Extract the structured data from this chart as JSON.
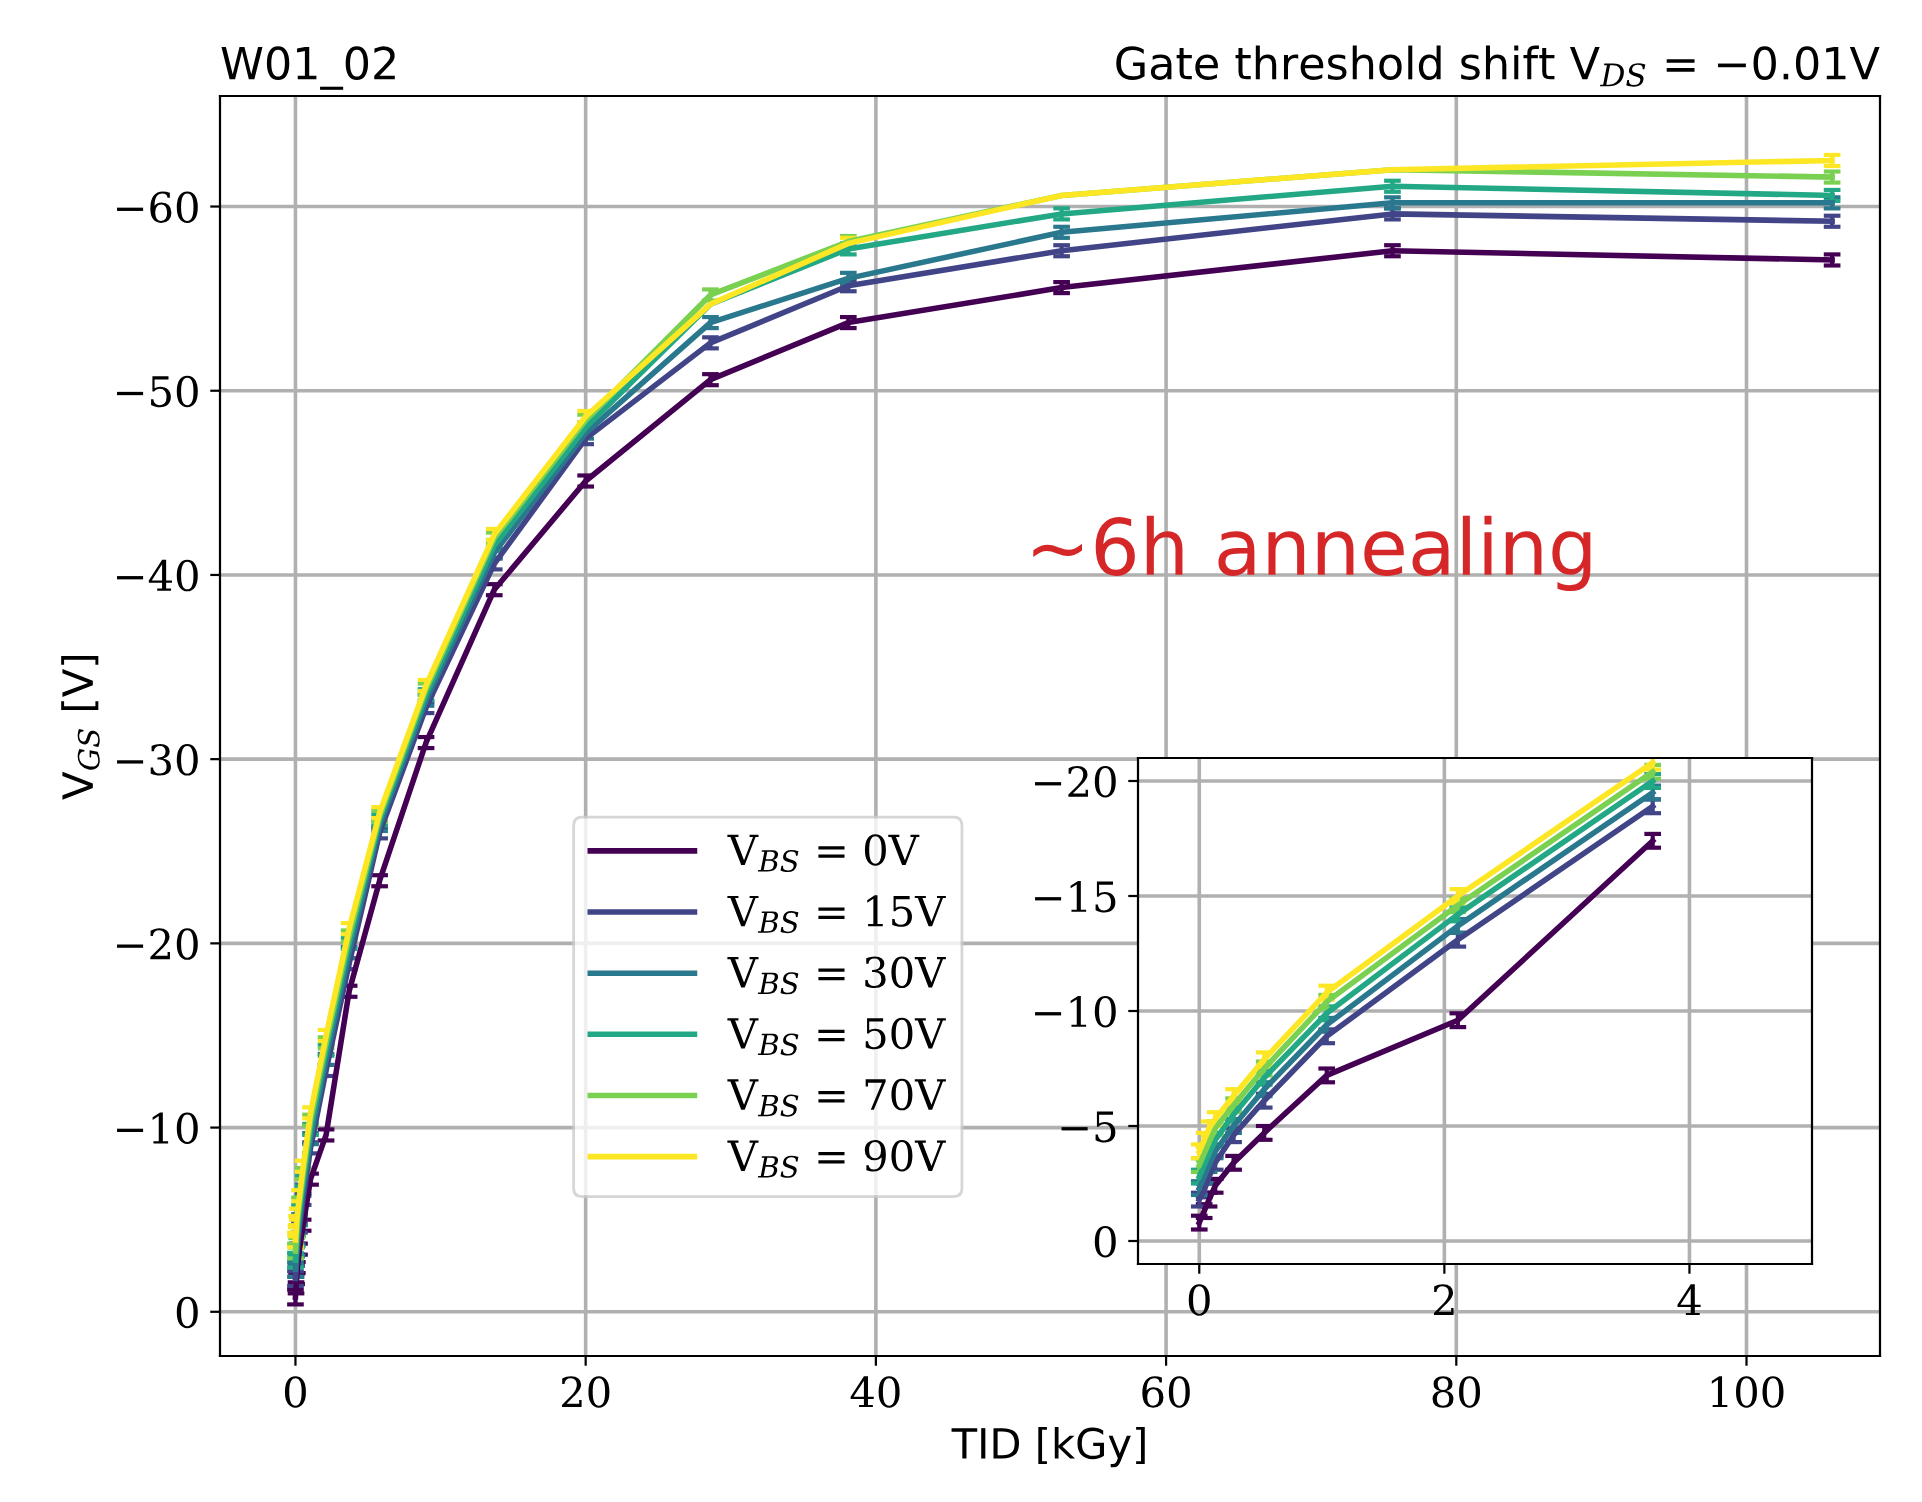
{
  "chart_data": [
    {
      "type": "line",
      "title": "W01_02",
      "subtitle": "Gate threshold shift V$_{DS}$ = −0.01V",
      "xlabel": "TID [kGy]",
      "ylabel": "V$_{GS}$ [V]",
      "annotations": [
        "~6h annealing"
      ],
      "x": [
        0,
        0.04,
        0.08,
        0.13,
        0.28,
        0.53,
        1.04,
        2.11,
        3.7,
        5.8,
        9.0,
        13.7,
        20.0,
        28.6,
        38.1,
        52.8,
        75.6,
        105.9
      ],
      "xlim": [
        -5.2,
        109.2
      ],
      "ylim": [
        2.4,
        -66
      ],
      "xticks": [
        0,
        20,
        40,
        60,
        80,
        100
      ],
      "yticks": [
        0,
        -10,
        -20,
        -30,
        -40,
        -50,
        -60
      ],
      "grid": true,
      "legend": "bottom",
      "line_style": "solid",
      "series": [
        {
          "name": "V$_{BS}$ = 0V",
          "color": "#440154",
          "values": [
            -0.8,
            -1.3,
            -1.8,
            -2.4,
            -3.4,
            -4.7,
            -7.2,
            -9.6,
            -17.4,
            -23.4,
            -30.9,
            -39.2,
            -45.1,
            -50.6,
            -53.7,
            -55.6,
            -57.6,
            -57.1
          ],
          "errors": [
            0.4,
            0.3,
            0.3,
            0.3,
            0.3,
            0.3,
            0.3,
            0.3,
            0.3,
            0.3,
            0.3,
            0.3,
            0.3,
            0.3,
            0.3,
            0.3,
            0.3,
            0.3
          ]
        },
        {
          "name": "V$_{BS}$ = 15V",
          "color": "#414487",
          "values": [
            -1.8,
            -2.2,
            -2.8,
            -3.4,
            -4.6,
            -6.1,
            -8.9,
            -13.1,
            -18.9,
            -26.0,
            -32.8,
            -40.6,
            -47.4,
            -52.6,
            -55.7,
            -57.6,
            -59.6,
            -59.2
          ],
          "errors": [
            0.4,
            0.3,
            0.3,
            0.3,
            0.3,
            0.3,
            0.3,
            0.3,
            0.3,
            0.3,
            0.3,
            0.3,
            0.3,
            0.3,
            0.3,
            0.3,
            0.3,
            0.3
          ]
        },
        {
          "name": "V$_{BS}$ = 30V",
          "color": "#2a788e",
          "values": [
            -2.3,
            -2.8,
            -3.3,
            -3.9,
            -5.0,
            -6.6,
            -9.4,
            -13.7,
            -19.5,
            -26.4,
            -33.2,
            -41.2,
            -47.7,
            -53.7,
            -56.1,
            -58.6,
            -60.2,
            -60.2
          ],
          "errors": [
            0.4,
            0.3,
            0.3,
            0.3,
            0.3,
            0.3,
            0.3,
            0.3,
            0.3,
            0.3,
            0.3,
            0.3,
            0.3,
            0.3,
            0.3,
            0.3,
            0.3,
            0.3
          ]
        },
        {
          "name": "V$_{BS}$ = 50V",
          "color": "#22a884",
          "values": [
            -2.8,
            -3.3,
            -3.8,
            -4.4,
            -5.5,
            -7.1,
            -9.9,
            -14.2,
            -20.0,
            -26.7,
            -33.5,
            -41.6,
            -48.0,
            -54.7,
            -57.7,
            -59.6,
            -61.1,
            -60.6
          ],
          "errors": [
            0.4,
            0.3,
            0.3,
            0.3,
            0.3,
            0.3,
            0.3,
            0.3,
            0.3,
            0.3,
            0.3,
            0.3,
            0.3,
            null,
            0.3,
            0.3,
            0.3,
            0.3
          ]
        },
        {
          "name": "V$_{BS}$ = 70V",
          "color": "#7ad151",
          "values": [
            -3.3,
            -3.8,
            -4.3,
            -4.9,
            -5.9,
            -7.5,
            -10.4,
            -14.6,
            -20.4,
            -26.9,
            -33.8,
            -42.0,
            -48.4,
            -55.2,
            -58.1,
            -60.6,
            -62.0,
            -61.6
          ],
          "errors": [
            0.4,
            0.3,
            0.3,
            0.3,
            0.3,
            0.3,
            0.3,
            0.3,
            0.3,
            0.3,
            0.3,
            0.3,
            0.3,
            0.3,
            0.3,
            null,
            null,
            0.3
          ]
        },
        {
          "name": "V$_{BS}$ = 90V",
          "color": "#fde725",
          "values": [
            -3.9,
            -4.4,
            -4.9,
            -5.3,
            -6.3,
            -7.9,
            -10.8,
            -15.0,
            -20.8,
            -27.1,
            -34.0,
            -42.2,
            -48.6,
            -54.7,
            -58.0,
            -60.6,
            -62.0,
            -62.5
          ],
          "errors": [
            0.4,
            0.3,
            0.3,
            0.3,
            0.3,
            0.3,
            0.3,
            0.3,
            0.3,
            0.3,
            0.3,
            0.3,
            0.3,
            null,
            0.3,
            null,
            null,
            0.3
          ]
        }
      ]
    },
    {
      "type": "line",
      "x": [
        0,
        0.04,
        0.08,
        0.13,
        0.28,
        0.53,
        1.04,
        2.11,
        3.7
      ],
      "xlim": [
        -0.5,
        5.0
      ],
      "ylim": [
        1.0,
        -21
      ],
      "xticks": [
        0,
        2,
        4
      ],
      "yticks": [
        0,
        -5,
        -10,
        -15,
        -20
      ],
      "grid": true,
      "line_style": "solid",
      "series": [
        {
          "color": "#440154",
          "values": [
            -0.8,
            -1.3,
            -1.8,
            -2.4,
            -3.4,
            -4.7,
            -7.2,
            -9.6,
            -17.4
          ],
          "errors": [
            0.3,
            0.3,
            0.3,
            0.3,
            0.3,
            0.3,
            0.3,
            0.3,
            0.3
          ]
        },
        {
          "color": "#414487",
          "values": [
            -1.8,
            -2.2,
            -2.8,
            -3.4,
            -4.6,
            -6.1,
            -8.9,
            -13.1,
            -18.9
          ],
          "errors": [
            0.3,
            0.3,
            0.3,
            0.3,
            0.3,
            0.3,
            0.3,
            0.3,
            0.3
          ]
        },
        {
          "color": "#2a788e",
          "values": [
            -2.3,
            -2.8,
            -3.3,
            -3.9,
            -5.0,
            -6.6,
            -9.4,
            -13.7,
            -19.5
          ],
          "errors": [
            0.3,
            0.3,
            0.3,
            0.3,
            0.3,
            0.3,
            0.3,
            0.3,
            0.3
          ]
        },
        {
          "color": "#22a884",
          "values": [
            -2.8,
            -3.3,
            -3.8,
            -4.4,
            -5.5,
            -7.1,
            -9.9,
            -14.2,
            -20.0
          ],
          "errors": [
            0.3,
            0.3,
            0.3,
            0.3,
            0.3,
            0.3,
            0.3,
            0.3,
            0.3
          ]
        },
        {
          "color": "#7ad151",
          "values": [
            -3.3,
            -3.8,
            -4.3,
            -4.9,
            -5.9,
            -7.5,
            -10.4,
            -14.6,
            -20.4
          ],
          "errors": [
            0.3,
            0.3,
            0.3,
            0.3,
            0.3,
            0.3,
            0.3,
            0.3,
            0.3
          ]
        },
        {
          "color": "#fde725",
          "values": [
            -3.9,
            -4.4,
            -4.9,
            -5.3,
            -6.3,
            -7.9,
            -10.8,
            -15.0,
            -20.8
          ],
          "errors": [
            0.3,
            0.3,
            0.3,
            0.3,
            0.3,
            0.3,
            0.3,
            0.3,
            0.3
          ]
        }
      ]
    }
  ]
}
